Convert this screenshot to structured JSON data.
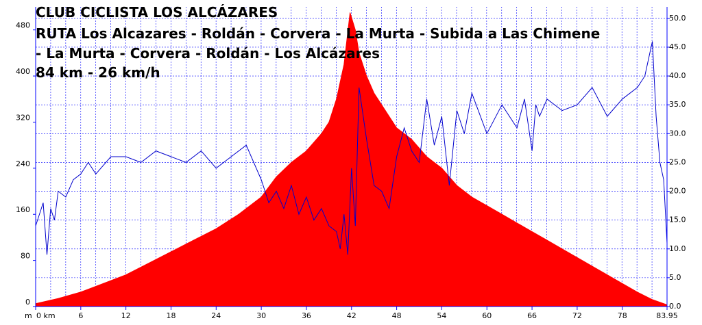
{
  "chart_data": {
    "type": "area",
    "title_lines": [
      "CLUB CICLISTA LOS ALCÁZARES",
      "RUTA  Los Alcazares - Roldán - Corvera - La Murta - Subida a Las Chimene",
      " - La Murta - Corvera - Roldán - Los Alcázares",
      "84 km - 26 km/h"
    ],
    "x_unit_label": "m",
    "x_tick_labels": [
      "0 km",
      "6",
      "12",
      "18",
      "24",
      "30",
      "36",
      "42",
      "48",
      "54",
      "60",
      "66",
      "72",
      "78",
      "83.95"
    ],
    "x_ticks": [
      0,
      6,
      12,
      18,
      24,
      30,
      36,
      42,
      48,
      54,
      60,
      66,
      72,
      78,
      83.95
    ],
    "xlim": [
      0,
      83.95
    ],
    "y_left_tick_labels": [
      "0",
      "80",
      "160",
      "240",
      "320",
      "400",
      "480"
    ],
    "y_left_ticks": [
      0,
      80,
      160,
      240,
      320,
      400,
      480
    ],
    "y_left_lim": [
      0,
      520
    ],
    "y_right_tick_labels": [
      "0.0",
      "5.0",
      "10.0",
      "15.0",
      "20.0",
      "25.0",
      "30.0",
      "35.0",
      "40.0",
      "45.0",
      "50.0"
    ],
    "y_right_ticks": [
      0,
      5,
      10,
      15,
      20,
      25,
      30,
      35,
      40,
      45,
      50
    ],
    "y_right_lim": [
      0,
      52
    ],
    "grid": true,
    "series": [
      {
        "role": "altitude",
        "axis": "left",
        "color": "#ff0000",
        "style": "filled-area",
        "x": [
          0,
          3,
          6,
          9,
          12,
          15,
          18,
          21,
          24,
          27,
          30,
          32,
          34,
          36,
          37,
          38,
          39,
          40,
          41,
          41.8,
          42.5,
          43,
          44,
          45,
          46,
          47,
          48,
          49,
          50,
          51,
          52,
          54,
          56,
          58,
          60,
          62,
          64,
          66,
          68,
          70,
          72,
          74,
          76,
          78,
          80,
          82,
          83.95
        ],
        "y": [
          5,
          14,
          25,
          40,
          55,
          75,
          95,
          115,
          135,
          160,
          190,
          225,
          250,
          270,
          285,
          300,
          320,
          360,
          420,
          510,
          480,
          440,
          400,
          370,
          350,
          330,
          310,
          300,
          290,
          275,
          260,
          240,
          210,
          190,
          175,
          160,
          145,
          130,
          115,
          100,
          85,
          70,
          55,
          40,
          25,
          12,
          3
        ]
      },
      {
        "role": "speed",
        "axis": "right",
        "color": "#0000cc",
        "style": "line",
        "x": [
          0,
          1,
          1.5,
          2,
          2.5,
          3,
          4,
          5,
          6,
          7,
          8,
          10,
          12,
          14,
          16,
          18,
          20,
          22,
          24,
          26,
          28,
          30,
          31,
          32,
          33,
          34,
          35,
          36,
          37,
          38,
          39,
          40,
          40.5,
          41,
          41.5,
          42,
          42.5,
          43,
          44,
          45,
          46,
          47,
          48,
          49,
          50,
          51,
          52,
          53,
          54,
          55,
          56,
          57,
          58,
          60,
          62,
          64,
          65,
          66,
          66.5,
          67,
          68,
          70,
          72,
          74,
          76,
          78,
          80,
          81,
          82,
          82.5,
          83,
          83.5,
          83.95
        ],
        "y": [
          14,
          18,
          9,
          17,
          15,
          20,
          19,
          22,
          23,
          25,
          23,
          26,
          26,
          25,
          27,
          26,
          25,
          27,
          24,
          26,
          28,
          22,
          18,
          20,
          17,
          21,
          16,
          19,
          15,
          17,
          14,
          13,
          10,
          16,
          9,
          24,
          14,
          38,
          29,
          21,
          20,
          17,
          26,
          31,
          27,
          25,
          36,
          28,
          33,
          21,
          34,
          30,
          37,
          30,
          35,
          31,
          36,
          27,
          35,
          33,
          36,
          34,
          35,
          38,
          33,
          36,
          38,
          40,
          46,
          33,
          25,
          22,
          11
        ]
      }
    ]
  }
}
